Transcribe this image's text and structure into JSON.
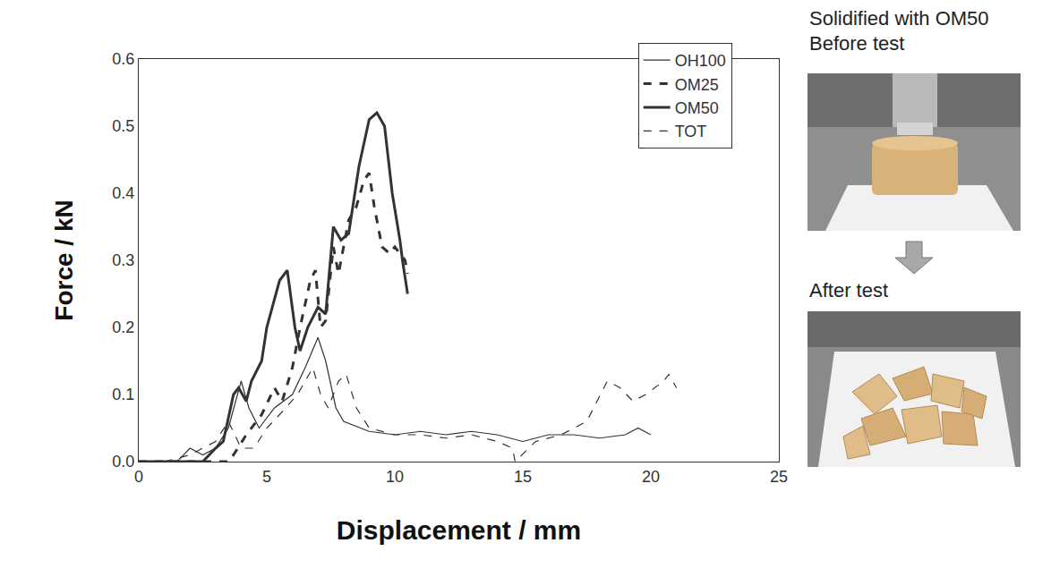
{
  "chart_data": {
    "type": "line",
    "x_label": "Displacement / mm",
    "y_label": "Force / kN",
    "xlim": [
      0,
      25
    ],
    "xticks": [
      0,
      5,
      10,
      15,
      20,
      25
    ],
    "ylim": [
      0,
      0.6
    ],
    "yticks": [
      {
        "value": 0,
        "label": "0.0"
      },
      0.1,
      0.2,
      0.3,
      0.4,
      0.5,
      0.6
    ],
    "grid": false,
    "legend": "top-right",
    "annotations": [
      "Solidified with OM50",
      "Before test",
      "After test"
    ],
    "series": [
      {
        "name": "OH100",
        "color": "#333333",
        "line_style": "thin-solid",
        "x": [
          0,
          1.5,
          2,
          2.5,
          3,
          3.5,
          4,
          4.3,
          4.7,
          5.3,
          6,
          6.5,
          7,
          7.3,
          7.7,
          8,
          9,
          10,
          11,
          12,
          13,
          14,
          15,
          16,
          17,
          18,
          19,
          19.5,
          20
        ],
        "values": [
          0,
          0,
          0.02,
          0.01,
          0.02,
          0.05,
          0.12,
          0.08,
          0.05,
          0.08,
          0.1,
          0.14,
          0.185,
          0.15,
          0.08,
          0.06,
          0.045,
          0.04,
          0.045,
          0.04,
          0.045,
          0.04,
          0.03,
          0.04,
          0.04,
          0.035,
          0.04,
          0.05,
          0.04
        ]
      },
      {
        "name": "OM25",
        "color": "#333333",
        "line_style": "thick-dash",
        "x": [
          0,
          3.5,
          3.7,
          4.2,
          4.8,
          5.3,
          5.6,
          6,
          6.3,
          6.7,
          6.9,
          7.1,
          7.3,
          7.6,
          7.8,
          8.2,
          8.5,
          8.8,
          9,
          9.2,
          9.5,
          9.8,
          10,
          10.2,
          10.4,
          10.5
        ],
        "values": [
          0,
          0,
          0.01,
          0.04,
          0.07,
          0.11,
          0.09,
          0.14,
          0.2,
          0.27,
          0.285,
          0.2,
          0.21,
          0.32,
          0.28,
          0.36,
          0.38,
          0.42,
          0.43,
          0.38,
          0.32,
          0.31,
          0.32,
          0.31,
          0.3,
          0.28
        ]
      },
      {
        "name": "OM50",
        "color": "#333333",
        "line_style": "thick-solid",
        "x": [
          0,
          2.5,
          3,
          3.3,
          3.7,
          3.9,
          4.2,
          4.4,
          4.8,
          5,
          5.5,
          5.8,
          6.1,
          6.3,
          6.6,
          7,
          7.3,
          7.6,
          7.9,
          8.2,
          8.6,
          9,
          9.3,
          9.6,
          9.9,
          10.2,
          10.3,
          10.5
        ],
        "values": [
          0,
          0,
          0.02,
          0.03,
          0.1,
          0.11,
          0.09,
          0.12,
          0.15,
          0.2,
          0.27,
          0.285,
          0.2,
          0.165,
          0.2,
          0.23,
          0.22,
          0.35,
          0.33,
          0.34,
          0.44,
          0.51,
          0.52,
          0.5,
          0.4,
          0.33,
          0.3,
          0.25
        ]
      },
      {
        "name": "TOT",
        "color": "#333333",
        "line_style": "thin-dash",
        "x": [
          1,
          2,
          3,
          3.5,
          4,
          4.5,
          5,
          5.5,
          6.2,
          6.8,
          7.1,
          7.4,
          7.8,
          8.1,
          8.5,
          9,
          10,
          11,
          12,
          13,
          14,
          14.6,
          14.7,
          15.5,
          16.5,
          17.5,
          18.3,
          18.8,
          19.3,
          19.8,
          20.5,
          20.7,
          21
        ],
        "values": [
          0,
          0.01,
          0.03,
          0.06,
          0.02,
          0.02,
          0.05,
          0.07,
          0.1,
          0.14,
          0.1,
          0.08,
          0.12,
          0.13,
          0.08,
          0.05,
          0.04,
          0.04,
          0.035,
          0.04,
          0.03,
          0.02,
          0,
          0.03,
          0.04,
          0.06,
          0.12,
          0.11,
          0.09,
          0.1,
          0.12,
          0.13,
          0.11
        ]
      }
    ]
  }
}
